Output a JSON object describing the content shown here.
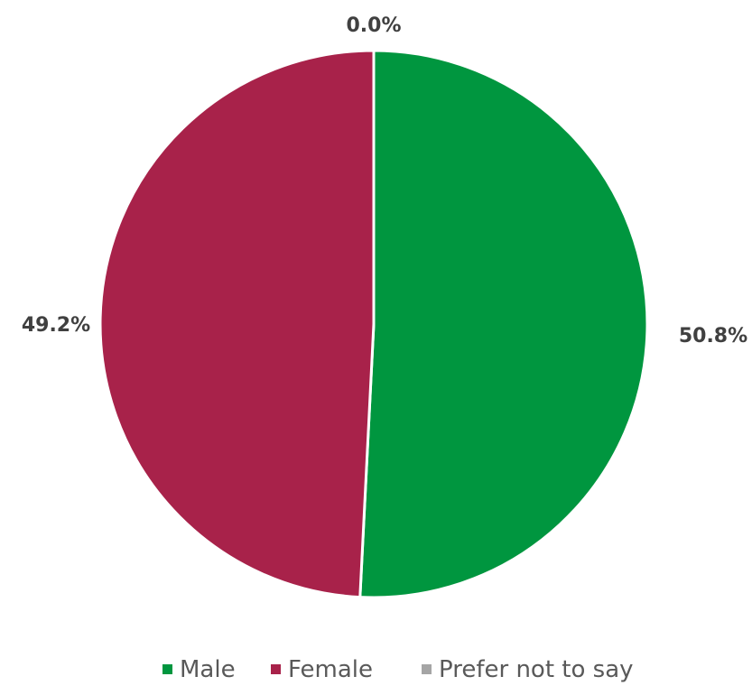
{
  "chart_data": {
    "type": "pie",
    "title": "",
    "categories": [
      "Male",
      "Female",
      "Prefer not to say"
    ],
    "values": [
      50.8,
      49.2,
      0.0
    ],
    "data_labels": [
      "50.8%",
      "49.2%",
      "0.0%"
    ],
    "colors": [
      "#00963f",
      "#a8224a",
      "#a5a5a5"
    ],
    "start_angle": "12 o'clock",
    "direction": "clockwise",
    "legend": {
      "position": "bottom",
      "entries": [
        "Male",
        "Female",
        "Prefer not to say"
      ]
    }
  }
}
